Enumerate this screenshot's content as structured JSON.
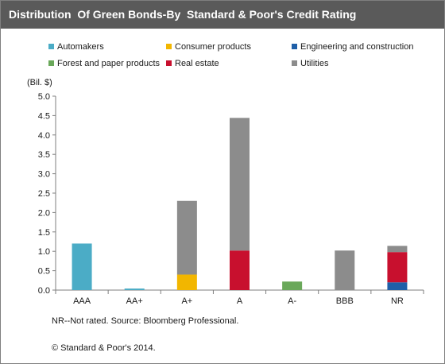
{
  "title": "Distribution  Of Green Bonds-By  Standard & Poor's Credit Rating",
  "note": "NR--Not rated. Source: Bloomberg Professional.",
  "credit": "© Standard & Poor's 2014.",
  "chart_data": {
    "type": "bar",
    "stacked": true,
    "ylabel": "(Bil. $)",
    "ylim": [
      0,
      5.0
    ],
    "yticks": [
      "0.0",
      "0.5",
      "1.0",
      "1.5",
      "2.0",
      "2.5",
      "3.0",
      "3.5",
      "4.0",
      "4.5",
      "5.0"
    ],
    "categories": [
      "AAA",
      "AA+",
      "A+",
      "A",
      "A-",
      "BBB",
      "NR"
    ],
    "grid": false,
    "legend_position": "top",
    "series": [
      {
        "name": "Automakers",
        "color": "#4bacc6",
        "values": [
          1.2,
          0.04,
          0,
          0,
          0,
          0,
          0
        ]
      },
      {
        "name": "Consumer products",
        "color": "#f2b600",
        "values": [
          0,
          0,
          0.4,
          0,
          0,
          0,
          0
        ]
      },
      {
        "name": "Engineering and construction",
        "color": "#1f5fa8",
        "values": [
          0,
          0,
          0,
          0,
          0,
          0,
          0.2
        ]
      },
      {
        "name": "Forest and paper products",
        "color": "#6aa85a",
        "values": [
          0,
          0,
          0,
          0,
          0.22,
          0,
          0
        ]
      },
      {
        "name": "Real estate",
        "color": "#c8102e",
        "values": [
          0,
          0,
          0,
          1.02,
          0,
          0,
          0.78
        ]
      },
      {
        "name": "Utilities",
        "color": "#8c8c8c",
        "values": [
          0,
          0,
          1.9,
          3.42,
          0,
          1.02,
          0.16
        ]
      }
    ]
  }
}
